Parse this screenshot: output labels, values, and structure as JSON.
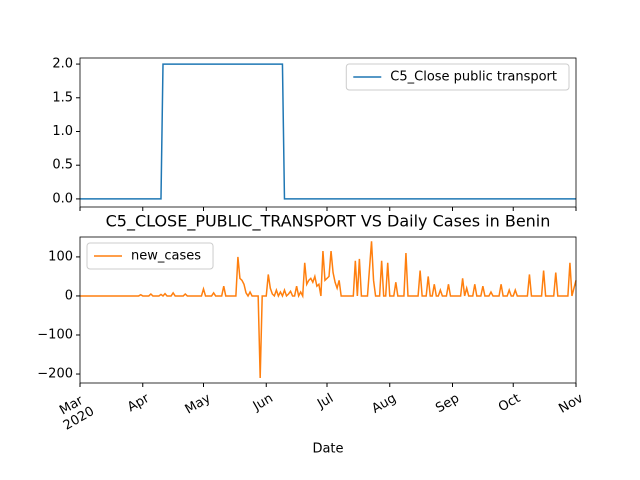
{
  "chart_data": [
    {
      "type": "line",
      "x": [
        0,
        40,
        41,
        100,
        101,
        245
      ],
      "series": [
        {
          "name": "C5_Close public transport",
          "color": "#1f77b4",
          "values": [
            0,
            0,
            2,
            2,
            0,
            0
          ]
        }
      ],
      "xlim": [
        0,
        245
      ],
      "xticks": [
        0,
        31,
        61,
        92,
        122,
        153,
        184,
        214,
        245
      ],
      "ylim": [
        -0.12,
        2.09
      ],
      "yticks": [
        {
          "value": 0,
          "label": "0.0"
        },
        {
          "value": 0.5,
          "label": "0.5"
        },
        {
          "value": 1,
          "label": "1.0"
        },
        {
          "value": 1.5,
          "label": "1.5"
        },
        {
          "value": 2,
          "label": "2.0"
        }
      ],
      "legend": "upper right"
    },
    {
      "type": "line",
      "title": "C5_CLOSE_PUBLIC_TRANSPORT VS Daily Cases in Benin",
      "xlabel": "Date",
      "x": [
        0,
        29,
        30,
        31,
        34,
        35,
        36,
        39,
        40,
        41,
        42,
        43,
        45,
        46,
        47,
        51,
        52,
        53,
        60,
        61,
        62,
        65,
        66,
        67,
        70,
        71,
        72,
        77,
        78,
        79,
        80,
        81,
        82,
        83,
        84,
        85,
        88,
        89,
        90,
        92,
        93,
        94,
        95,
        96,
        97,
        98,
        99,
        100,
        101,
        102,
        103,
        104,
        105,
        106,
        107,
        108,
        109,
        110,
        111,
        112,
        113,
        114,
        115,
        116,
        117,
        118,
        119,
        120,
        121,
        122,
        123,
        124,
        125,
        126,
        127,
        128,
        129,
        135,
        136,
        137,
        138,
        139,
        142,
        143,
        144,
        145,
        146,
        148,
        149,
        150,
        151,
        152,
        153,
        155,
        156,
        157,
        160,
        161,
        162,
        167,
        168,
        169,
        171,
        172,
        173,
        174,
        175,
        176,
        177,
        178,
        179,
        181,
        182,
        183,
        188,
        189,
        190,
        191,
        192,
        194,
        195,
        196,
        198,
        199,
        200,
        202,
        203,
        204,
        207,
        208,
        209,
        211,
        212,
        213,
        214,
        215,
        216,
        221,
        222,
        223,
        228,
        229,
        230,
        234,
        235,
        236,
        241,
        242,
        243,
        245
      ],
      "series": [
        {
          "name": "new_cases",
          "color": "#ff7f0e",
          "values": [
            0,
            0,
            3,
            0,
            0,
            5,
            0,
            0,
            4,
            0,
            6,
            0,
            0,
            8,
            0,
            0,
            5,
            0,
            0,
            18,
            0,
            0,
            8,
            0,
            0,
            25,
            0,
            0,
            100,
            45,
            40,
            30,
            8,
            0,
            10,
            0,
            0,
            -210,
            0,
            0,
            55,
            20,
            5,
            0,
            15,
            0,
            10,
            0,
            15,
            0,
            5,
            12,
            0,
            0,
            25,
            0,
            10,
            0,
            85,
            30,
            40,
            45,
            35,
            50,
            25,
            30,
            0,
            115,
            40,
            45,
            50,
            115,
            60,
            35,
            20,
            40,
            0,
            0,
            90,
            0,
            95,
            0,
            0,
            70,
            140,
            40,
            0,
            0,
            90,
            0,
            0,
            85,
            0,
            0,
            35,
            0,
            0,
            110,
            0,
            0,
            65,
            0,
            0,
            50,
            0,
            0,
            30,
            0,
            0,
            15,
            0,
            0,
            30,
            0,
            0,
            45,
            0,
            20,
            0,
            0,
            30,
            0,
            0,
            25,
            0,
            0,
            10,
            0,
            0,
            30,
            0,
            0,
            15,
            0,
            0,
            15,
            0,
            0,
            55,
            0,
            0,
            65,
            0,
            0,
            60,
            0,
            0,
            85,
            0,
            40
          ]
        }
      ],
      "xlim": [
        0,
        245
      ],
      "xticks": [
        {
          "value": 0,
          "label": "Mar\n2020"
        },
        {
          "value": 31,
          "label": "Apr"
        },
        {
          "value": 61,
          "label": "May"
        },
        {
          "value": 92,
          "label": "Jun"
        },
        {
          "value": 122,
          "label": "Jul"
        },
        {
          "value": 153,
          "label": "Aug"
        },
        {
          "value": 184,
          "label": "Sep"
        },
        {
          "value": 214,
          "label": "Oct"
        },
        {
          "value": 245,
          "label": "Nov"
        }
      ],
      "ylim": [
        -223,
        151
      ],
      "yticks": [
        {
          "value": -200,
          "label": "−200"
        },
        {
          "value": -100,
          "label": "−100"
        },
        0,
        100
      ],
      "legend": "upper left"
    }
  ]
}
